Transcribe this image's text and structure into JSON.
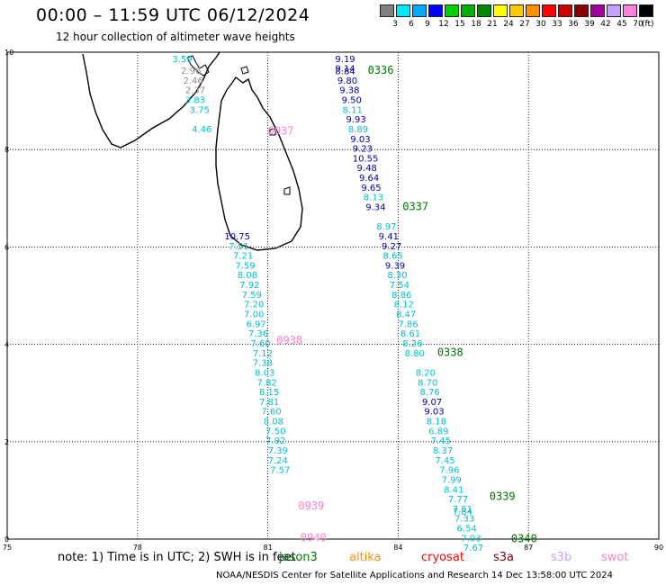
{
  "header": {
    "title": "00:00 – 11:59 UTC 06/12/2024",
    "subtitle": "12 hour collection of altimeter wave heights"
  },
  "legend": {
    "colors": [
      "#808080",
      "#00e8ff",
      "#00a8ff",
      "#0000ff",
      "#00d000",
      "#00b000",
      "#008800",
      "#ffff00",
      "#ffc800",
      "#ff9000",
      "#ff0000",
      "#c80000",
      "#880000",
      "#a000a0",
      "#c8a0ff",
      "#ff80e0",
      "#000000"
    ],
    "labels": [
      "3",
      "6",
      "9",
      "12",
      "15",
      "18",
      "21",
      "24",
      "27",
      "30",
      "33",
      "36",
      "39",
      "42",
      "45",
      "70"
    ],
    "unit": "(ft)"
  },
  "map": {
    "xlim": [
      75,
      90
    ],
    "ylim": [
      0,
      10
    ],
    "x_ticks": [
      "75",
      "78",
      "81",
      "84",
      "87",
      "90"
    ],
    "y_ticks": [
      "0",
      "2",
      "4",
      "6",
      "8",
      "10"
    ],
    "grid": "dotted",
    "land": "Sri Lanka and southern India coastline",
    "colors": {
      "jason3": "#007700",
      "swot": "#ff80d0",
      "cyan": "#00c0d0",
      "blue": "#0000aa",
      "gray": "#909090"
    }
  },
  "tracks": [
    {
      "satellite": "jason3",
      "time_labels": [
        {
          "text": "0336",
          "lon": 83.3,
          "lat": 9.65
        },
        {
          "text": "0337",
          "lon": 84.1,
          "lat": 6.85
        },
        {
          "text": "0338",
          "lon": 84.9,
          "lat": 3.85
        },
        {
          "text": "0339",
          "lon": 86.1,
          "lat": 0.9
        },
        {
          "text": "0340",
          "lon": 86.6,
          "lat": 0.03
        }
      ],
      "observations": [
        {
          "text": "9.19",
          "lon": 82.55,
          "lat": 9.87,
          "color": "blue"
        },
        {
          "text": "9.14",
          "lon": 82.55,
          "lat": 9.68,
          "color": "blue"
        },
        {
          "text": "8.84",
          "lon": 82.55,
          "lat": 9.62,
          "color": "blue"
        },
        {
          "text": "9.80",
          "lon": 82.6,
          "lat": 9.43,
          "color": "blue"
        },
        {
          "text": "9.38",
          "lon": 82.65,
          "lat": 9.23,
          "color": "blue"
        },
        {
          "text": "9.50",
          "lon": 82.7,
          "lat": 9.03,
          "color": "blue"
        },
        {
          "text": "8.11",
          "lon": 82.72,
          "lat": 8.83,
          "color": "cyan"
        },
        {
          "text": "9.93",
          "lon": 82.8,
          "lat": 8.63,
          "color": "blue"
        },
        {
          "text": "8.89",
          "lon": 82.85,
          "lat": 8.43,
          "color": "cyan"
        },
        {
          "text": "9.03",
          "lon": 82.9,
          "lat": 8.23,
          "color": "blue"
        },
        {
          "text": "9.23",
          "lon": 82.95,
          "lat": 8.03,
          "color": "blue"
        },
        {
          "text": "10.55",
          "lon": 82.95,
          "lat": 7.83,
          "color": "blue"
        },
        {
          "text": "9.48",
          "lon": 83.05,
          "lat": 7.63,
          "color": "blue"
        },
        {
          "text": "9.64",
          "lon": 83.1,
          "lat": 7.43,
          "color": "blue"
        },
        {
          "text": "9.65",
          "lon": 83.15,
          "lat": 7.23,
          "color": "blue"
        },
        {
          "text": "8.13",
          "lon": 83.2,
          "lat": 7.03,
          "color": "cyan"
        },
        {
          "text": "9.34",
          "lon": 83.25,
          "lat": 6.83,
          "color": "blue"
        },
        {
          "text": "8.97",
          "lon": 83.5,
          "lat": 6.43,
          "color": "cyan"
        },
        {
          "text": "9.41",
          "lon": 83.55,
          "lat": 6.23,
          "color": "blue"
        },
        {
          "text": "9.27",
          "lon": 83.62,
          "lat": 6.03,
          "color": "blue"
        },
        {
          "text": "8.65",
          "lon": 83.65,
          "lat": 5.83,
          "color": "cyan"
        },
        {
          "text": "9.39",
          "lon": 83.7,
          "lat": 5.63,
          "color": "blue"
        },
        {
          "text": "8.30",
          "lon": 83.75,
          "lat": 5.43,
          "color": "cyan"
        },
        {
          "text": "7.54",
          "lon": 83.8,
          "lat": 5.23,
          "color": "cyan"
        },
        {
          "text": "8.86",
          "lon": 83.85,
          "lat": 5.03,
          "color": "cyan"
        },
        {
          "text": "8.12",
          "lon": 83.9,
          "lat": 4.83,
          "color": "cyan"
        },
        {
          "text": "8.47",
          "lon": 83.95,
          "lat": 4.63,
          "color": "cyan"
        },
        {
          "text": "7.86",
          "lon": 84.0,
          "lat": 4.43,
          "color": "cyan"
        },
        {
          "text": "8.61",
          "lon": 84.05,
          "lat": 4.23,
          "color": "cyan"
        },
        {
          "text": "8.26",
          "lon": 84.1,
          "lat": 4.03,
          "color": "cyan"
        },
        {
          "text": "8.80",
          "lon": 84.15,
          "lat": 3.83,
          "color": "cyan"
        },
        {
          "text": "8.20",
          "lon": 84.4,
          "lat": 3.43,
          "color": "cyan"
        },
        {
          "text": "8.70",
          "lon": 84.45,
          "lat": 3.23,
          "color": "cyan"
        },
        {
          "text": "8.76",
          "lon": 84.5,
          "lat": 3.03,
          "color": "cyan"
        },
        {
          "text": "9.07",
          "lon": 84.55,
          "lat": 2.83,
          "color": "blue"
        },
        {
          "text": "9.03",
          "lon": 84.6,
          "lat": 2.63,
          "color": "blue"
        },
        {
          "text": "8.18",
          "lon": 84.65,
          "lat": 2.43,
          "color": "cyan"
        },
        {
          "text": "6.89",
          "lon": 84.7,
          "lat": 2.23,
          "color": "cyan"
        },
        {
          "text": "7.45",
          "lon": 84.75,
          "lat": 2.03,
          "color": "cyan"
        },
        {
          "text": "8.37",
          "lon": 84.8,
          "lat": 1.83,
          "color": "cyan"
        },
        {
          "text": "7.45",
          "lon": 84.85,
          "lat": 1.63,
          "color": "cyan"
        },
        {
          "text": "7.96",
          "lon": 84.95,
          "lat": 1.43,
          "color": "cyan"
        },
        {
          "text": "7.99",
          "lon": 85.0,
          "lat": 1.23,
          "color": "cyan"
        },
        {
          "text": "8.41",
          "lon": 85.05,
          "lat": 1.03,
          "color": "cyan"
        },
        {
          "text": "7.77",
          "lon": 85.15,
          "lat": 0.83,
          "color": "cyan"
        },
        {
          "text": "7.81",
          "lon": 85.25,
          "lat": 0.63,
          "color": "cyan"
        },
        {
          "text": "7.84",
          "lon": 85.25,
          "lat": 0.57,
          "color": "cyan"
        },
        {
          "text": "7.33",
          "lon": 85.3,
          "lat": 0.43,
          "color": "cyan"
        },
        {
          "text": "6.54",
          "lon": 85.35,
          "lat": 0.23,
          "color": "cyan"
        },
        {
          "text": "7.03",
          "lon": 85.45,
          "lat": 0.03,
          "color": "cyan"
        },
        {
          "text": "7.67",
          "lon": 85.5,
          "lat": -0.17,
          "color": "cyan"
        }
      ]
    },
    {
      "satellite": "swot",
      "time_labels": [
        {
          "text": "0937",
          "lon": 81.0,
          "lat": 8.4
        },
        {
          "text": "0938",
          "lon": 81.2,
          "lat": 4.1
        },
        {
          "text": "0939",
          "lon": 81.7,
          "lat": 0.7
        },
        {
          "text": "0940",
          "lon": 81.75,
          "lat": 0.05
        }
      ],
      "observations": [
        {
          "text": "3.59",
          "lon": 78.8,
          "lat": 9.87,
          "color": "cyan"
        },
        {
          "text": "2.96",
          "lon": 79.0,
          "lat": 9.63,
          "color": "gray"
        },
        {
          "text": "2.46",
          "lon": 79.05,
          "lat": 9.43,
          "color": "gray"
        },
        {
          "text": "2.37",
          "lon": 79.1,
          "lat": 9.23,
          "color": "gray"
        },
        {
          "text": "3.83",
          "lon": 79.1,
          "lat": 9.03,
          "color": "cyan"
        },
        {
          "text": "3.75",
          "lon": 79.2,
          "lat": 8.83,
          "color": "cyan"
        },
        {
          "text": "4.46",
          "lon": 79.25,
          "lat": 8.43,
          "color": "cyan"
        },
        {
          "text": "10.75",
          "lon": 80.0,
          "lat": 6.23,
          "color": "blue"
        },
        {
          "text": "7.51",
          "lon": 80.1,
          "lat": 6.03,
          "color": "cyan"
        },
        {
          "text": "7.21",
          "lon": 80.2,
          "lat": 5.83,
          "color": "cyan"
        },
        {
          "text": "7.59",
          "lon": 80.25,
          "lat": 5.63,
          "color": "cyan"
        },
        {
          "text": "8.08",
          "lon": 80.3,
          "lat": 5.43,
          "color": "cyan"
        },
        {
          "text": "7.92",
          "lon": 80.35,
          "lat": 5.23,
          "color": "cyan"
        },
        {
          "text": "7.59",
          "lon": 80.4,
          "lat": 5.03,
          "color": "cyan"
        },
        {
          "text": "7.20",
          "lon": 80.45,
          "lat": 4.83,
          "color": "cyan"
        },
        {
          "text": "7.00",
          "lon": 80.45,
          "lat": 4.63,
          "color": "cyan"
        },
        {
          "text": "6.97",
          "lon": 80.5,
          "lat": 4.43,
          "color": "cyan"
        },
        {
          "text": "7.36",
          "lon": 80.55,
          "lat": 4.23,
          "color": "cyan"
        },
        {
          "text": "7.60",
          "lon": 80.6,
          "lat": 4.03,
          "color": "cyan"
        },
        {
          "text": "7.12",
          "lon": 80.65,
          "lat": 3.83,
          "color": "cyan"
        },
        {
          "text": "7.38",
          "lon": 80.65,
          "lat": 3.63,
          "color": "cyan"
        },
        {
          "text": "8.03",
          "lon": 80.7,
          "lat": 3.43,
          "color": "cyan"
        },
        {
          "text": "7.82",
          "lon": 80.75,
          "lat": 3.23,
          "color": "cyan"
        },
        {
          "text": "8.15",
          "lon": 80.8,
          "lat": 3.03,
          "color": "cyan"
        },
        {
          "text": "7.81",
          "lon": 80.8,
          "lat": 2.83,
          "color": "cyan"
        },
        {
          "text": "7.60",
          "lon": 80.85,
          "lat": 2.63,
          "color": "cyan"
        },
        {
          "text": "8.08",
          "lon": 80.9,
          "lat": 2.43,
          "color": "cyan"
        },
        {
          "text": "7.50",
          "lon": 80.95,
          "lat": 2.23,
          "color": "cyan"
        },
        {
          "text": "7.92",
          "lon": 80.95,
          "lat": 2.03,
          "color": "cyan"
        },
        {
          "text": "7.39",
          "lon": 81.0,
          "lat": 1.83,
          "color": "cyan"
        },
        {
          "text": "7.24",
          "lon": 81.0,
          "lat": 1.63,
          "color": "cyan"
        },
        {
          "text": "7.57",
          "lon": 81.05,
          "lat": 1.43,
          "color": "cyan"
        }
      ]
    }
  ],
  "footer": {
    "note": "note:  1) Time is in UTC; 2) SWH is in feet",
    "satellites": [
      {
        "label": "jason3",
        "color": "#007700"
      },
      {
        "label": "altika",
        "color": "#ff9000"
      },
      {
        "label": "cryosat",
        "color": "#ff0000"
      },
      {
        "label": "s3a",
        "color": "#880000"
      },
      {
        "label": "s3b",
        "color": "#c8a0ff"
      },
      {
        "label": "swot",
        "color": "#ff80d0"
      }
    ],
    "credit": "NOAA/NESDIS Center for Satellite Applications and Research    14 Dec 13:58:00 UTC 2024"
  }
}
